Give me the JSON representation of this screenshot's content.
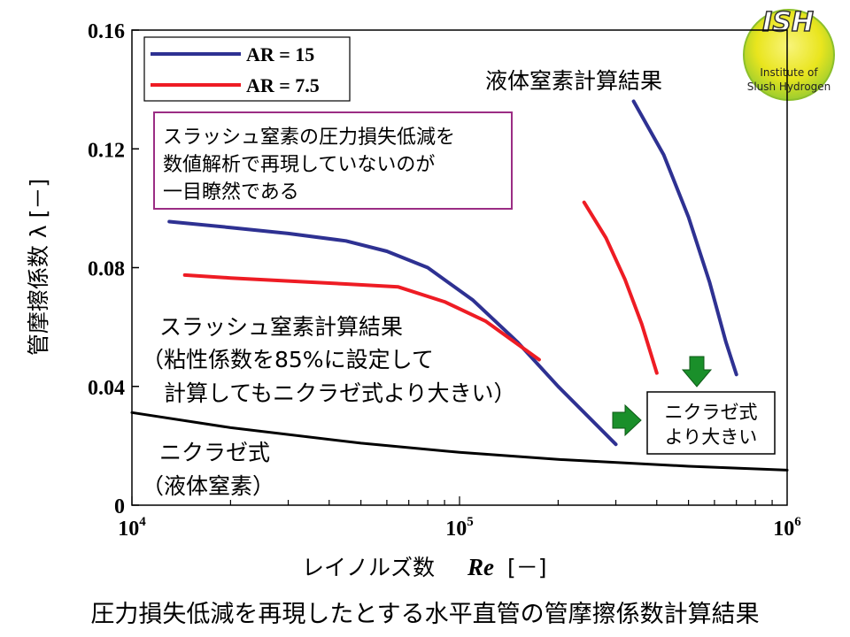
{
  "chart_data": {
    "type": "line",
    "x_scale": "log",
    "xlim": [
      10000,
      1000000
    ],
    "ylim": [
      0,
      0.16
    ],
    "xlabel": "レイノルズ数",
    "xlabel_symbol": "Re",
    "xlabel_unit": "[－]",
    "ylabel": "管摩擦係数 λ [－]",
    "x_ticks": [
      {
        "base": "10",
        "exp": "4",
        "value": 10000
      },
      {
        "base": "10",
        "exp": "5",
        "value": 100000
      },
      {
        "base": "10",
        "exp": "6",
        "value": 1000000
      }
    ],
    "y_ticks": [
      "0",
      "0.04",
      "0.08",
      "0.12",
      "0.16"
    ],
    "y_tick_values": [
      0,
      0.04,
      0.08,
      0.12,
      0.16
    ],
    "legend": [
      {
        "label": "AR = 15",
        "color": "#2e3192"
      },
      {
        "label": "AR = 7.5",
        "color": "#ee1c24"
      }
    ],
    "series": [
      {
        "group": "slush",
        "legend_ref": 0,
        "color": "#2e3192",
        "x": [
          13000,
          20000,
          30000,
          45000,
          60000,
          80000,
          110000,
          150000,
          200000,
          300000
        ],
        "y": [
          0.0955,
          0.0935,
          0.0915,
          0.089,
          0.0855,
          0.08,
          0.069,
          0.055,
          0.04,
          0.0205
        ]
      },
      {
        "group": "slush",
        "legend_ref": 1,
        "color": "#ee1c24",
        "x": [
          14500,
          20000,
          30000,
          45000,
          65000,
          90000,
          120000,
          175000
        ],
        "y": [
          0.0775,
          0.0765,
          0.0755,
          0.0745,
          0.0735,
          0.0685,
          0.062,
          0.049
        ]
      },
      {
        "group": "ln2",
        "legend_ref": 0,
        "color": "#2e3192",
        "x": [
          340000,
          420000,
          500000,
          580000,
          650000,
          700000
        ],
        "y": [
          0.136,
          0.118,
          0.097,
          0.075,
          0.055,
          0.044
        ]
      },
      {
        "group": "ln2",
        "legend_ref": 1,
        "color": "#ee1c24",
        "x": [
          240000,
          280000,
          320000,
          360000,
          400000
        ],
        "y": [
          0.102,
          0.09,
          0.076,
          0.061,
          0.0445
        ]
      },
      {
        "group": "nikuradse",
        "color": "#000000",
        "x": [
          10000,
          20000,
          50000,
          100000,
          200000,
          500000,
          1000000
        ],
        "y": [
          0.0312,
          0.0261,
          0.0209,
          0.0178,
          0.0154,
          0.0131,
          0.0118
        ]
      }
    ],
    "annotations": {
      "ln2_result": "液体窒素計算結果",
      "box_note": [
        "スラッシュ窒素の圧力損失低減を",
        "数値解析で再現していないのが",
        "一目瞭然である"
      ],
      "slush_result": [
        "スラッシュ窒素計算結果",
        "（粘性係数を85%に設定して",
        "　計算してもニクラゼ式より大きい）"
      ],
      "nikuradse": [
        "ニクラゼ式",
        "（液体窒素）"
      ],
      "nikuradse_box": [
        "ニクラゼ式",
        "より大きい"
      ]
    },
    "title": "圧力損失低減を再現したとする水平直管の管摩擦係数計算結果"
  },
  "logo": {
    "text": "ISH",
    "line1": "Institute of",
    "line2": "Slush Hydrogen"
  },
  "colors": {
    "blue": "#2e3192",
    "red": "#ee1c24",
    "green": "#1a8f2a",
    "purple": "#9b2d84"
  }
}
